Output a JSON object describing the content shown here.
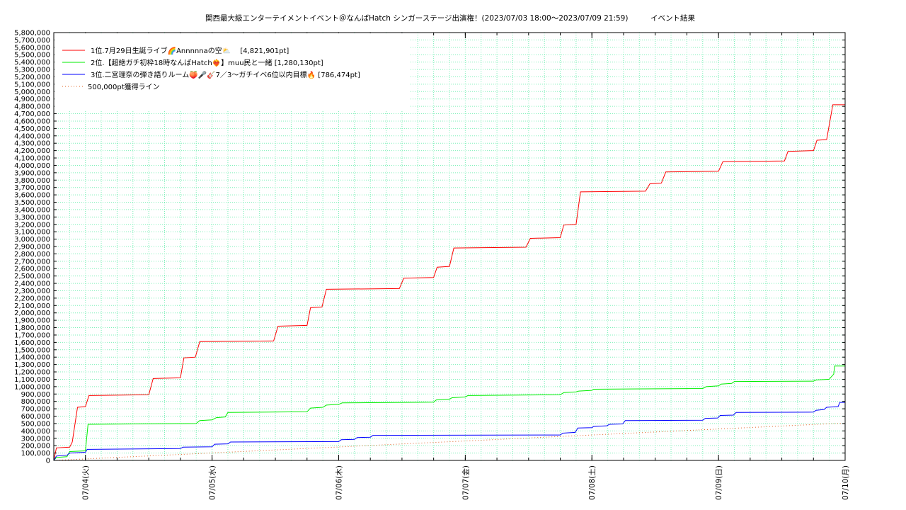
{
  "chart_data": {
    "type": "line",
    "title": "関西最大級エンターテイメントイベント＠なんばHatch シンガーステージ出演権！(2023/07/03 18:00～2023/07/09 21:59)　　　イベント結果",
    "x_start": "2023/07/03 18:00",
    "x_end": "2023/07/10 00:00",
    "x_ticks": [
      "07/04(火)",
      "07/05(水)",
      "07/06(木)",
      "07/07(金)",
      "07/08(土)",
      "07/09(日)",
      "07/10(月)"
    ],
    "ylim": [
      0,
      5800000
    ],
    "y_tick_step": 100000,
    "y_tick_labels": [
      "0",
      "100,000",
      "200,000",
      "300,000",
      "400,000",
      "500,000",
      "600,000",
      "700,000",
      "800,000",
      "900,000",
      "1,000,000",
      "1,100,000",
      "1,200,000",
      "1,300,000",
      "1,400,000",
      "1,500,000",
      "1,600,000",
      "1,700,000",
      "1,800,000",
      "1,900,000",
      "2,000,000",
      "2,100,000",
      "2,200,000",
      "2,300,000",
      "2,400,000",
      "2,500,000",
      "2,600,000",
      "2,700,000",
      "2,800,000",
      "2,900,000",
      "3,000,000",
      "3,100,000",
      "3,200,000",
      "3,300,000",
      "3,400,000",
      "3,500,000",
      "3,600,000",
      "3,700,000",
      "3,800,000",
      "3,900,000",
      "4,000,000",
      "4,100,000",
      "4,200,000",
      "4,300,000",
      "4,400,000",
      "4,500,000",
      "4,600,000",
      "4,700,000",
      "4,800,000",
      "4,900,000",
      "5,000,000",
      "5,100,000",
      "5,200,000",
      "5,300,000",
      "5,400,000",
      "5,500,000",
      "5,600,000",
      "5,700,000",
      "5,800,000"
    ],
    "grid": true,
    "legend_position": "top-left",
    "series": [
      {
        "name": "1位.7月29日生誕ライブ🌈Annnnnaの空⛅　 [4,821,901pt]",
        "color": "#ff0000",
        "style": "solid",
        "points": [
          [
            "2023/07/03 18:00",
            0
          ],
          [
            "2023/07/03 18:30",
            170000
          ],
          [
            "2023/07/03 21:00",
            180000
          ],
          [
            "2023/07/03 21:30",
            250000
          ],
          [
            "2023/07/03 22:30",
            720000
          ],
          [
            "2023/07/04 00:00",
            730000
          ],
          [
            "2023/07/04 00:40",
            880000
          ],
          [
            "2023/07/04 12:00",
            890000
          ],
          [
            "2023/07/04 12:50",
            1110000
          ],
          [
            "2023/07/04 18:00",
            1120000
          ],
          [
            "2023/07/04 18:40",
            1390000
          ],
          [
            "2023/07/04 20:50",
            1400000
          ],
          [
            "2023/07/04 21:40",
            1610000
          ],
          [
            "2023/07/05 11:40",
            1620000
          ],
          [
            "2023/07/05 12:30",
            1820000
          ],
          [
            "2023/07/05 18:00",
            1830000
          ],
          [
            "2023/07/05 18:40",
            2070000
          ],
          [
            "2023/07/05 20:50",
            2080000
          ],
          [
            "2023/07/05 21:40",
            2320000
          ],
          [
            "2023/07/06 11:30",
            2330000
          ],
          [
            "2023/07/06 12:20",
            2470000
          ],
          [
            "2023/07/06 18:00",
            2480000
          ],
          [
            "2023/07/06 18:40",
            2620000
          ],
          [
            "2023/07/06 21:00",
            2630000
          ],
          [
            "2023/07/06 21:50",
            2880000
          ],
          [
            "2023/07/07 11:30",
            2890000
          ],
          [
            "2023/07/07 12:20",
            3010000
          ],
          [
            "2023/07/07 18:00",
            3020000
          ],
          [
            "2023/07/07 18:40",
            3190000
          ],
          [
            "2023/07/07 21:00",
            3200000
          ],
          [
            "2023/07/07 21:50",
            3640000
          ],
          [
            "2023/07/08 10:10",
            3650000
          ],
          [
            "2023/07/08 11:00",
            3750000
          ],
          [
            "2023/07/08 13:10",
            3760000
          ],
          [
            "2023/07/08 14:00",
            3910000
          ],
          [
            "2023/07/09 00:00",
            3920000
          ],
          [
            "2023/07/09 00:50",
            4050000
          ],
          [
            "2023/07/09 12:30",
            4060000
          ],
          [
            "2023/07/09 13:10",
            4190000
          ],
          [
            "2023/07/09 18:00",
            4200000
          ],
          [
            "2023/07/09 18:40",
            4340000
          ],
          [
            "2023/07/09 20:30",
            4350000
          ],
          [
            "2023/07/09 21:10",
            4620000
          ],
          [
            "2023/07/09 21:40",
            4821901
          ],
          [
            "2023/07/10 00:00",
            4821901
          ]
        ]
      },
      {
        "name": "2位.【超絶ガチ初枠18時なんばHatch❤️‍🔥】muu民と一緒 [1,280,130pt]",
        "color": "#00ee00",
        "style": "solid",
        "points": [
          [
            "2023/07/03 18:00",
            0
          ],
          [
            "2023/07/03 18:30",
            40000
          ],
          [
            "2023/07/03 20:30",
            50000
          ],
          [
            "2023/07/03 21:00",
            120000
          ],
          [
            "2023/07/04 00:00",
            130000
          ],
          [
            "2023/07/04 00:30",
            490000
          ],
          [
            "2023/07/04 21:00",
            500000
          ],
          [
            "2023/07/04 21:40",
            540000
          ],
          [
            "2023/07/05 00:00",
            550000
          ],
          [
            "2023/07/05 00:50",
            580000
          ],
          [
            "2023/07/05 02:30",
            590000
          ],
          [
            "2023/07/05 03:00",
            650000
          ],
          [
            "2023/07/05 18:00",
            660000
          ],
          [
            "2023/07/05 18:40",
            710000
          ],
          [
            "2023/07/05 21:00",
            720000
          ],
          [
            "2023/07/05 21:40",
            750000
          ],
          [
            "2023/07/06 00:00",
            760000
          ],
          [
            "2023/07/06 00:40",
            780000
          ],
          [
            "2023/07/06 18:00",
            790000
          ],
          [
            "2023/07/06 18:30",
            820000
          ],
          [
            "2023/07/06 21:00",
            830000
          ],
          [
            "2023/07/06 21:30",
            850000
          ],
          [
            "2023/07/07 00:00",
            860000
          ],
          [
            "2023/07/07 00:30",
            880000
          ],
          [
            "2023/07/07 18:00",
            890000
          ],
          [
            "2023/07/07 18:40",
            920000
          ],
          [
            "2023/07/07 21:00",
            930000
          ],
          [
            "2023/07/07 21:30",
            940000
          ],
          [
            "2023/07/08 00:00",
            950000
          ],
          [
            "2023/07/08 00:20",
            965000
          ],
          [
            "2023/07/08 21:00",
            975000
          ],
          [
            "2023/07/08 21:40",
            1000000
          ],
          [
            "2023/07/09 00:00",
            1010000
          ],
          [
            "2023/07/09 00:30",
            1035000
          ],
          [
            "2023/07/09 02:30",
            1045000
          ],
          [
            "2023/07/09 03:00",
            1070000
          ],
          [
            "2023/07/09 18:00",
            1075000
          ],
          [
            "2023/07/09 18:30",
            1090000
          ],
          [
            "2023/07/09 21:00",
            1100000
          ],
          [
            "2023/07/09 21:20",
            1130000
          ],
          [
            "2023/07/09 21:50",
            1170000
          ],
          [
            "2023/07/09 22:00",
            1280130
          ],
          [
            "2023/07/10 00:00",
            1280130
          ]
        ]
      },
      {
        "name": "3位.二宮理奈の弾き語りルーム🍑🎤🎸7／3〜ガチイベ6位以内目標🔥 [786,474pt]",
        "color": "#0000ff",
        "style": "solid",
        "points": [
          [
            "2023/07/03 18:00",
            0
          ],
          [
            "2023/07/03 18:30",
            60000
          ],
          [
            "2023/07/03 20:30",
            70000
          ],
          [
            "2023/07/03 21:00",
            100000
          ],
          [
            "2023/07/04 00:00",
            110000
          ],
          [
            "2023/07/04 00:20",
            150000
          ],
          [
            "2023/07/04 18:00",
            160000
          ],
          [
            "2023/07/04 18:30",
            180000
          ],
          [
            "2023/07/05 00:00",
            185000
          ],
          [
            "2023/07/05 00:30",
            220000
          ],
          [
            "2023/07/05 03:00",
            225000
          ],
          [
            "2023/07/05 03:30",
            250000
          ],
          [
            "2023/07/06 00:00",
            255000
          ],
          [
            "2023/07/06 00:30",
            280000
          ],
          [
            "2023/07/06 03:00",
            285000
          ],
          [
            "2023/07/06 03:30",
            310000
          ],
          [
            "2023/07/06 06:00",
            315000
          ],
          [
            "2023/07/06 06:30",
            340000
          ],
          [
            "2023/07/07 18:00",
            345000
          ],
          [
            "2023/07/07 18:30",
            370000
          ],
          [
            "2023/07/07 20:50",
            380000
          ],
          [
            "2023/07/07 21:20",
            440000
          ],
          [
            "2023/07/08 00:00",
            445000
          ],
          [
            "2023/07/08 00:20",
            460000
          ],
          [
            "2023/07/08 02:50",
            470000
          ],
          [
            "2023/07/08 03:20",
            490000
          ],
          [
            "2023/07/08 05:50",
            495000
          ],
          [
            "2023/07/08 06:20",
            540000
          ],
          [
            "2023/07/08 21:00",
            545000
          ],
          [
            "2023/07/08 21:30",
            570000
          ],
          [
            "2023/07/08 23:50",
            575000
          ],
          [
            "2023/07/09 00:20",
            610000
          ],
          [
            "2023/07/09 02:50",
            615000
          ],
          [
            "2023/07/09 03:20",
            650000
          ],
          [
            "2023/07/09 18:00",
            655000
          ],
          [
            "2023/07/09 18:30",
            680000
          ],
          [
            "2023/07/09 20:00",
            690000
          ],
          [
            "2023/07/09 20:30",
            720000
          ],
          [
            "2023/07/09 22:40",
            730000
          ],
          [
            "2023/07/09 23:00",
            786474
          ],
          [
            "2023/07/10 00:00",
            786474
          ]
        ]
      },
      {
        "name": "500,000pt獲得ライン",
        "color": "#e06020",
        "style": "dotted",
        "points": [
          [
            "2023/07/03 18:00",
            0
          ],
          [
            "2023/07/09 22:00",
            500000
          ],
          [
            "2023/07/10 00:00",
            500000
          ]
        ]
      }
    ]
  }
}
